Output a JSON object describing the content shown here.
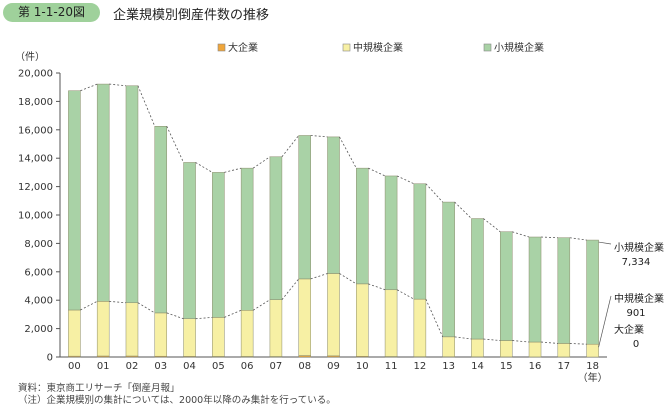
{
  "header": {
    "figure_number": "第 1-1-20図",
    "title": "企業規模別倒産件数の推移"
  },
  "footnotes": {
    "source": "資料：東京商工リサーチ「倒産月報」",
    "note": "（注）企業規模別の集計については、2000年以降のみ集計を行っている。"
  },
  "colors": {
    "large": "#f0a63a",
    "medium": "#f7f0a4",
    "small": "#a9d2a6",
    "badge": "#9fd19b"
  },
  "chart_data": {
    "type": "bar",
    "stacked": true,
    "title": "企業規模別倒産件数の推移",
    "ylabel": "（件）",
    "xlabel": "（年）",
    "ylim": [
      0,
      20000
    ],
    "yticks": [
      0,
      2000,
      4000,
      6000,
      8000,
      10000,
      12000,
      14000,
      16000,
      18000,
      20000
    ],
    "ytick_labels": [
      "0",
      "2,000",
      "4,000",
      "6,000",
      "8,000",
      "10,000",
      "12,000",
      "14,000",
      "16,000",
      "18,000",
      "20,000"
    ],
    "legend_position": "top",
    "categories": [
      "00",
      "01",
      "02",
      "03",
      "04",
      "05",
      "06",
      "07",
      "08",
      "09",
      "10",
      "11",
      "12",
      "13",
      "14",
      "15",
      "16",
      "17",
      "18"
    ],
    "series": [
      {
        "name": "大企業",
        "values": [
          60,
          70,
          70,
          55,
          45,
          40,
          40,
          35,
          100,
          80,
          50,
          35,
          25,
          20,
          15,
          10,
          5,
          5,
          0
        ]
      },
      {
        "name": "中規模企業",
        "values": [
          3250,
          3850,
          3750,
          3050,
          2650,
          2750,
          3250,
          4000,
          5400,
          5800,
          5100,
          4700,
          4050,
          1400,
          1250,
          1150,
          1050,
          950,
          901
        ]
      },
      {
        "name": "小規模企業",
        "values": [
          15440,
          15300,
          15280,
          13145,
          11005,
          10210,
          10010,
          10065,
          10100,
          9620,
          8150,
          8015,
          8125,
          9490,
          8485,
          7660,
          7395,
          7445,
          7334
        ]
      }
    ],
    "end_labels": [
      {
        "name": "小規模企業",
        "value": "7,334"
      },
      {
        "name": "中規模企業",
        "value": "901"
      },
      {
        "name": "大企業",
        "value": "0"
      }
    ]
  }
}
